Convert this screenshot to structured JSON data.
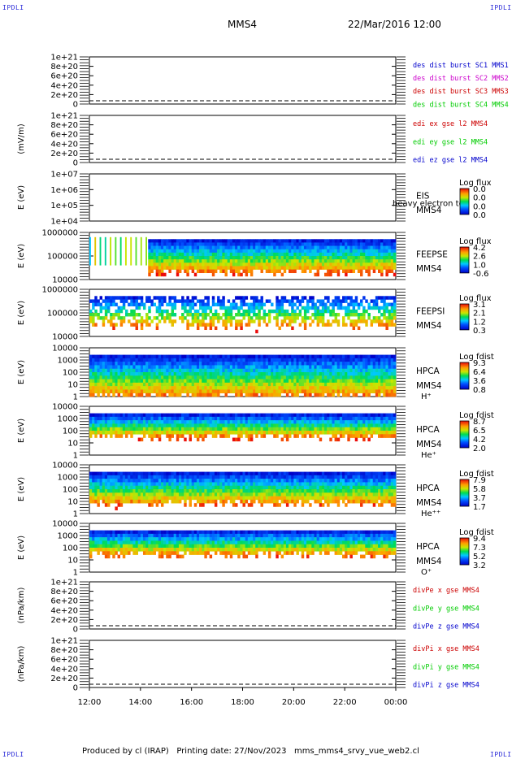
{
  "corner_label": "IPDLI",
  "header": {
    "spacecraft": "MMS4",
    "date_time": "22/Mar/2016 12:00"
  },
  "footer": {
    "text": "Produced by cl (IRAP)   Printing date: 27/Nov/2023   mms_mms4_srvy_vue_web2.cl"
  },
  "chart_data": [
    {
      "type": "line",
      "panel": "des_dist",
      "ylabel": "",
      "yticks": [
        "0",
        "2e+20",
        "4e+20",
        "6e+20",
        "8e+20",
        "1e+21"
      ],
      "ylim": [
        0,
        1e+21
      ],
      "series": [
        {
          "name": "des dist burst SC1 MMS1",
          "color": "#0000cc",
          "values": []
        },
        {
          "name": "des dist burst SC2 MMS2",
          "color": "#cc00cc",
          "values": []
        },
        {
          "name": "des dist burst SC3 MMS3",
          "color": "#cc0000",
          "values": []
        },
        {
          "name": "des dist burst SC4 MMS4",
          "color": "#00cc00",
          "values": []
        }
      ]
    },
    {
      "type": "line",
      "panel": "edi_e",
      "ylabel": "(mV/m)",
      "yticks": [
        "0",
        "2e+20",
        "4e+20",
        "6e+20",
        "8e+20",
        "1e+21"
      ],
      "ylim": [
        0,
        1e+21
      ],
      "series": [
        {
          "name": "edi ex gse l2 MMS4",
          "color": "#cc0000",
          "values": []
        },
        {
          "name": "edi ey gse l2 MMS4",
          "color": "#00cc00",
          "values": []
        },
        {
          "name": "edi ez gse l2 MMS4",
          "color": "#0000cc",
          "values": []
        }
      ]
    },
    {
      "type": "heatmap",
      "panel": "eis",
      "ylabel": "E (eV)",
      "yticks": [
        "1e+04",
        "1e+05",
        "1e+06",
        "1e+07"
      ],
      "scale": "log",
      "instrument": "EIS",
      "instrument_extra": "heavy electron tof",
      "sc": "MMS4",
      "species": "",
      "colorbar_label": "Log flux",
      "colorbar_ticks": [
        "0.0",
        "0.0",
        "0.0",
        "0.0"
      ]
    },
    {
      "type": "heatmap",
      "panel": "feepse",
      "ylabel": "E (eV)",
      "yticks": [
        "10000",
        "100000",
        "1000000"
      ],
      "scale": "log",
      "instrument": "FEEPSE",
      "sc": "MMS4",
      "species": "",
      "colorbar_label": "Log flux",
      "colorbar_ticks": [
        "4.2",
        "2.6",
        "1.0",
        "-0.6"
      ]
    },
    {
      "type": "heatmap",
      "panel": "feepsi",
      "ylabel": "E (eV)",
      "yticks": [
        "10000",
        "100000",
        "1000000"
      ],
      "scale": "log",
      "instrument": "FEEPSI",
      "sc": "MMS4",
      "species": "",
      "colorbar_label": "Log flux",
      "colorbar_ticks": [
        "3.1",
        "2.1",
        "1.2",
        "0.3"
      ]
    },
    {
      "type": "heatmap",
      "panel": "hpca_h",
      "ylabel": "E (eV)",
      "yticks": [
        "1",
        "10",
        "100",
        "1000",
        "10000"
      ],
      "scale": "log",
      "instrument": "HPCA",
      "sc": "MMS4",
      "species": "H⁺",
      "colorbar_label": "Log fdist",
      "colorbar_ticks": [
        "9.3",
        "6.4",
        "3.6",
        "0.8"
      ]
    },
    {
      "type": "heatmap",
      "panel": "hpca_he",
      "ylabel": "E (eV)",
      "yticks": [
        "1",
        "10",
        "100",
        "1000",
        "10000"
      ],
      "scale": "log",
      "instrument": "HPCA",
      "sc": "MMS4",
      "species": "He⁺",
      "colorbar_label": "Log fdist",
      "colorbar_ticks": [
        "8.7",
        "6.5",
        "4.2",
        "2.0"
      ]
    },
    {
      "type": "heatmap",
      "panel": "hpca_hepp",
      "ylabel": "E (eV)",
      "yticks": [
        "1",
        "10",
        "100",
        "1000",
        "10000"
      ],
      "scale": "log",
      "instrument": "HPCA",
      "sc": "MMS4",
      "species": "He⁺⁺",
      "colorbar_label": "Log fdist",
      "colorbar_ticks": [
        "7.9",
        "5.8",
        "3.7",
        "1.7"
      ]
    },
    {
      "type": "heatmap",
      "panel": "hpca_o",
      "ylabel": "E (eV)",
      "yticks": [
        "1",
        "10",
        "100",
        "1000",
        "10000"
      ],
      "scale": "log",
      "instrument": "HPCA",
      "sc": "MMS4",
      "species": "O⁺",
      "colorbar_label": "Log fdist",
      "colorbar_ticks": [
        "9.4",
        "7.3",
        "5.2",
        "3.2"
      ]
    },
    {
      "type": "line",
      "panel": "divpe",
      "ylabel": "(nPa/km)",
      "yticks": [
        "0",
        "2e+20",
        "4e+20",
        "6e+20",
        "8e+20",
        "1e+21"
      ],
      "ylim": [
        0,
        1e+21
      ],
      "series": [
        {
          "name": "divPe x gse MMS4",
          "color": "#cc0000",
          "values": []
        },
        {
          "name": "divPe y gse MMS4",
          "color": "#00cc00",
          "values": []
        },
        {
          "name": "divPe z gse MMS4",
          "color": "#0000cc",
          "values": []
        }
      ]
    },
    {
      "type": "line",
      "panel": "divpi",
      "ylabel": "(nPa/km)",
      "yticks": [
        "0",
        "2e+20",
        "4e+20",
        "6e+20",
        "8e+20",
        "1e+21"
      ],
      "ylim": [
        0,
        1e+21
      ],
      "series": [
        {
          "name": "divPi x gse MMS4",
          "color": "#cc0000",
          "values": []
        },
        {
          "name": "divPi y gse MMS4",
          "color": "#00cc00",
          "values": []
        },
        {
          "name": "divPi z gse MMS4",
          "color": "#0000cc",
          "values": []
        }
      ]
    }
  ],
  "time_axis": {
    "labels": [
      "12:00",
      "14:00",
      "16:00",
      "18:00",
      "20:00",
      "22:00",
      "00:00"
    ]
  }
}
